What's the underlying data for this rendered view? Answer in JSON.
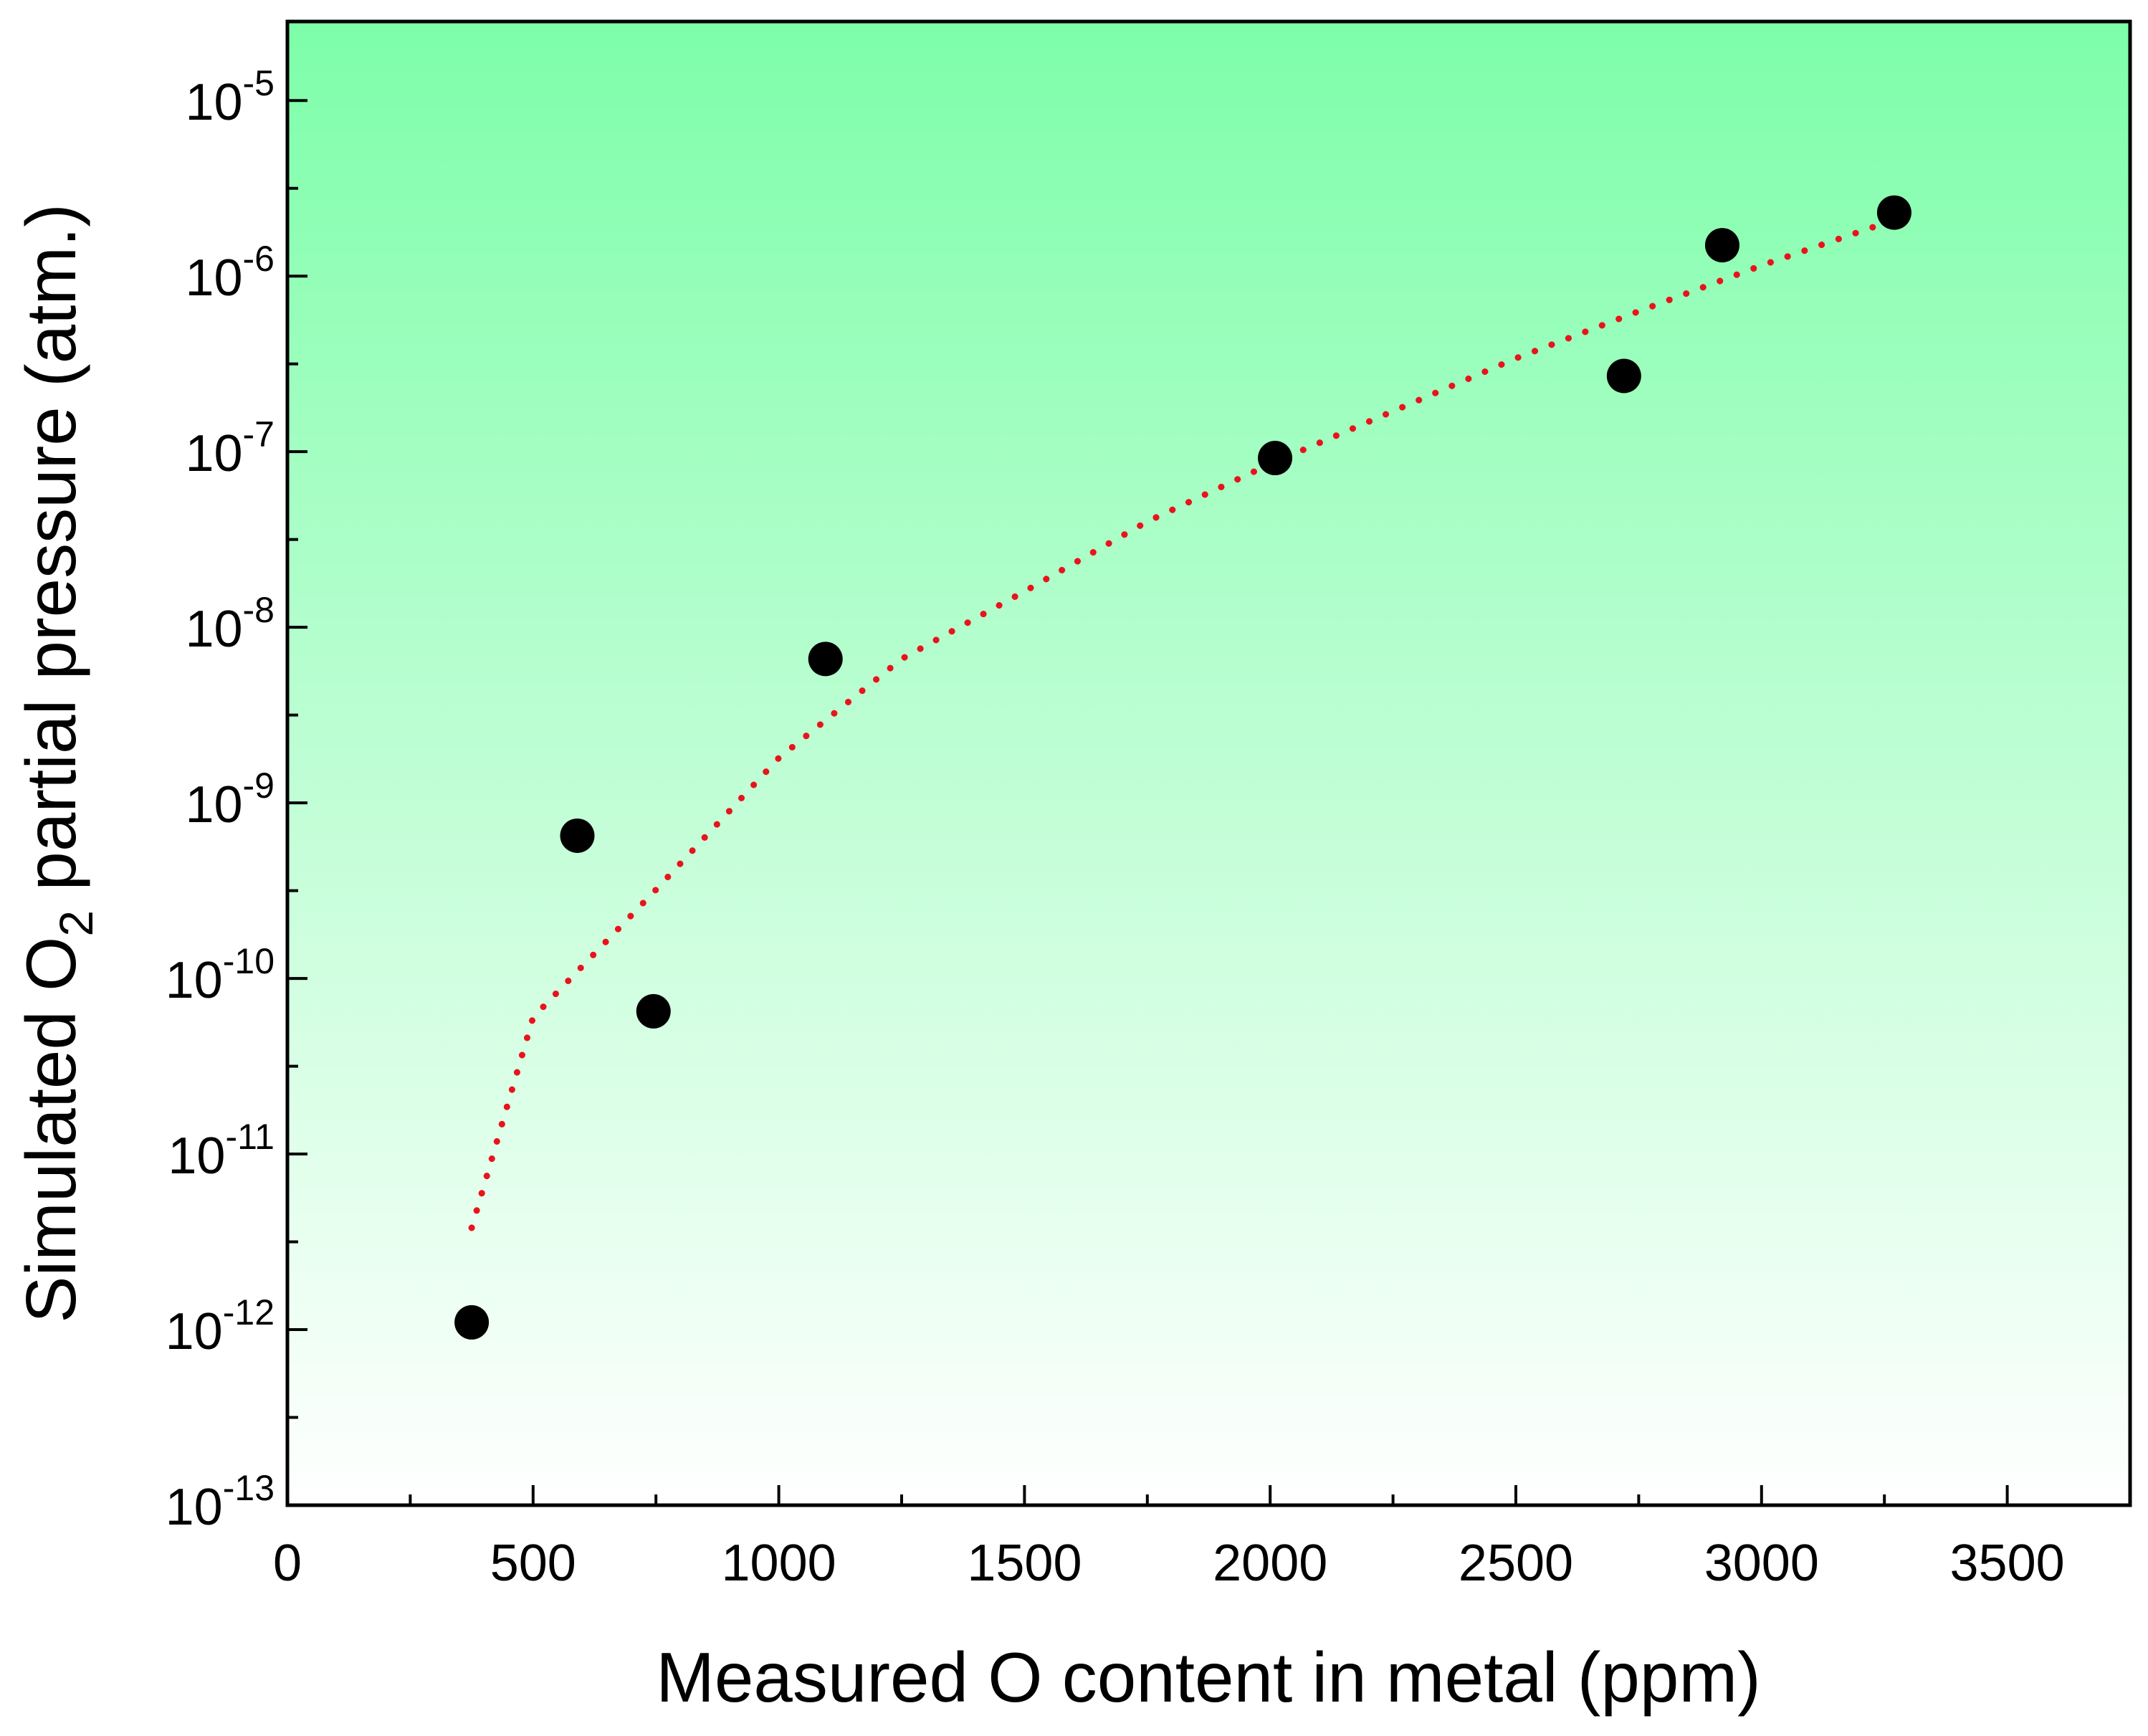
{
  "colors": {
    "gradient_top": "#7dfea9",
    "gradient_bottom": "#ffffff",
    "points": "#000000",
    "fit_line": "#e8141c",
    "axis": "#000000"
  },
  "chart_data": {
    "type": "scatter",
    "title": "",
    "xlabel": "Measured O content in metal (ppm)",
    "ylabel": {
      "prefix": "Simulated O",
      "subscript": "2",
      "suffix": " partial pressure (atm.)"
    },
    "x_scale": "linear",
    "y_scale": "log",
    "xlim": [
      0,
      3750
    ],
    "ylim_exponents": [
      -13,
      -4.55
    ],
    "x_ticks_major": [
      0,
      500,
      1000,
      1500,
      2000,
      2500,
      3000,
      3500
    ],
    "x_tick_labels": [
      "0",
      "500",
      "1000",
      "1500",
      "2000",
      "2500",
      "3000",
      "3500"
    ],
    "x_ticks_minor": [
      250,
      750,
      1250,
      1750,
      2250,
      2750,
      3250
    ],
    "y_ticks": [
      {
        "base": "10",
        "exp": "-13",
        "power": -13
      },
      {
        "base": "10",
        "exp": "-12",
        "power": -12
      },
      {
        "base": "10",
        "exp": "-11",
        "power": -11
      },
      {
        "base": "10",
        "exp": "-10",
        "power": -10
      },
      {
        "base": "10",
        "exp": "-9",
        "power": -9
      },
      {
        "base": "10",
        "exp": "-8",
        "power": -8
      },
      {
        "base": "10",
        "exp": "-7",
        "power": -7
      },
      {
        "base": "10",
        "exp": "-6",
        "power": -6
      },
      {
        "base": "10",
        "exp": "-5",
        "power": -5
      }
    ],
    "grid": false,
    "series": [
      {
        "name": "simulated",
        "kind": "scatter",
        "points": [
          {
            "x": 375,
            "y": 1.1e-12
          },
          {
            "x": 590,
            "y": 6.5e-10
          },
          {
            "x": 745,
            "y": 6.5e-11
          },
          {
            "x": 1095,
            "y": 6.6e-09
          },
          {
            "x": 2010,
            "y": 9.2e-08
          },
          {
            "x": 2720,
            "y": 2.7e-07
          },
          {
            "x": 2920,
            "y": 1.5e-06
          },
          {
            "x": 3270,
            "y": 2.3e-06
          }
        ]
      },
      {
        "name": "fit",
        "kind": "line",
        "style": "dotted",
        "points": [
          {
            "x": 375,
            "y": 3.8e-12
          },
          {
            "x": 500,
            "y": 6e-11
          },
          {
            "x": 750,
            "y": 3.2e-10
          },
          {
            "x": 1000,
            "y": 1.8e-09
          },
          {
            "x": 1250,
            "y": 6.6e-09
          },
          {
            "x": 1500,
            "y": 1.6e-08
          },
          {
            "x": 1750,
            "y": 4e-08
          },
          {
            "x": 2000,
            "y": 8.5e-08
          },
          {
            "x": 2250,
            "y": 1.7e-07
          },
          {
            "x": 2500,
            "y": 3.4e-07
          },
          {
            "x": 2750,
            "y": 6.3e-07
          },
          {
            "x": 3000,
            "y": 1.15e-06
          },
          {
            "x": 3250,
            "y": 2e-06
          }
        ]
      }
    ]
  }
}
